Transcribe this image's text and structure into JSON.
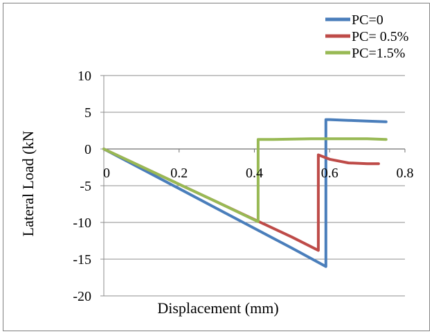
{
  "chart_data": {
    "type": "line",
    "title": "",
    "xlabel": "Displacement (mm)",
    "ylabel": "Lateral Load (kN",
    "xlim": [
      0,
      0.8
    ],
    "ylim": [
      -20,
      10
    ],
    "x_ticks": [
      0,
      0.2,
      0.4,
      0.6,
      0.8
    ],
    "x_tick_labels": [
      "0",
      "0.2",
      "0.4",
      "0.6",
      "0.8"
    ],
    "y_ticks": [
      -20,
      -15,
      -10,
      -5,
      0,
      5,
      10
    ],
    "y_tick_labels": [
      "-20",
      "-15",
      "-10",
      "-5",
      "0",
      "5",
      "10"
    ],
    "grid": "horizontal",
    "legend_position": "top-right",
    "series": [
      {
        "name": "PC=0",
        "color": "#4a7ebb",
        "x": [
          0,
          0.1,
          0.2,
          0.3,
          0.4,
          0.5,
          0.59,
          0.59,
          0.6,
          0.65,
          0.7,
          0.75
        ],
        "y": [
          0,
          -2.7,
          -5.4,
          -8.1,
          -10.8,
          -13.5,
          -16.0,
          4.0,
          4.0,
          3.9,
          3.8,
          3.7
        ]
      },
      {
        "name": "PC= 0.5%",
        "color": "#be4b48",
        "x": [
          0,
          0.1,
          0.2,
          0.3,
          0.4,
          0.5,
          0.57,
          0.57,
          0.6,
          0.65,
          0.7,
          0.73
        ],
        "y": [
          0,
          -2.4,
          -4.8,
          -7.2,
          -9.6,
          -12.0,
          -13.8,
          -0.8,
          -1.4,
          -1.9,
          -2.0,
          -2.0
        ]
      },
      {
        "name": "PC=1.5%",
        "color": "#98b954",
        "x": [
          0,
          0.1,
          0.2,
          0.3,
          0.41,
          0.41,
          0.45,
          0.5,
          0.55,
          0.6,
          0.65,
          0.7,
          0.75
        ],
        "y": [
          0,
          -2.4,
          -4.8,
          -7.2,
          -9.9,
          1.3,
          1.3,
          1.35,
          1.4,
          1.4,
          1.4,
          1.4,
          1.3
        ]
      }
    ]
  }
}
